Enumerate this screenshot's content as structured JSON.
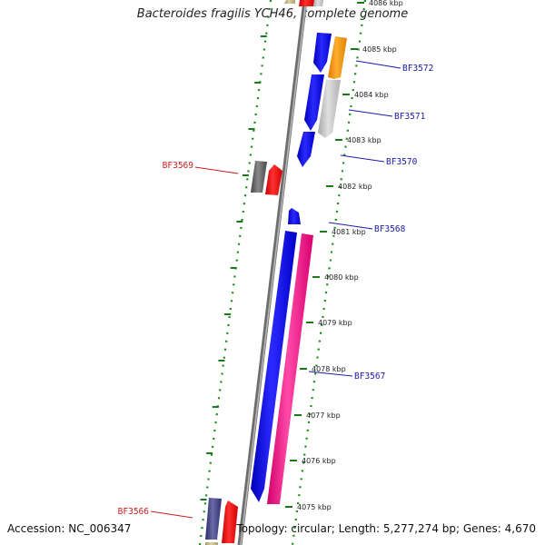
{
  "title": "Bacteroides fragilis YCH46, complete genome",
  "footer": {
    "accession": "Accession: NC_006347",
    "topology": "Topology: circular; Length: 5,277,274 bp; Genes: 4,670"
  },
  "kbp_ticks": [
    "4086 kbp",
    "4085 kbp",
    "4084 kbp",
    "4083 kbp",
    "4082 kbp",
    "4081 kbp",
    "4080 kbp",
    "4079 kbp",
    "4078 kbp",
    "4077 kbp",
    "4076 kbp",
    "4075 kbp"
  ],
  "gene_labels": [
    {
      "text": "BF3572",
      "color": "#1a1aa8"
    },
    {
      "text": "BF3571",
      "color": "#1a1aa8"
    },
    {
      "text": "BF3570",
      "color": "#1a1aa8"
    },
    {
      "text": "BF3569",
      "color": "#c81e1e"
    },
    {
      "text": "BF3568",
      "color": "#1a1aa8"
    },
    {
      "text": "BF3567",
      "color": "#1a1aa8"
    },
    {
      "text": "BF3566",
      "color": "#c81e1e"
    }
  ],
  "colors": {
    "blue": "#1010f0",
    "red": "#ff1010",
    "orange": "#ff9a10",
    "grey": "#c8c8c8",
    "dark_grey": "#6a6a6a",
    "pink": "#ff2a90",
    "navy": "#4a4a88",
    "tan": "#c8b890",
    "dots": "#1a8a1a",
    "backbone": "#8a8a8a"
  }
}
